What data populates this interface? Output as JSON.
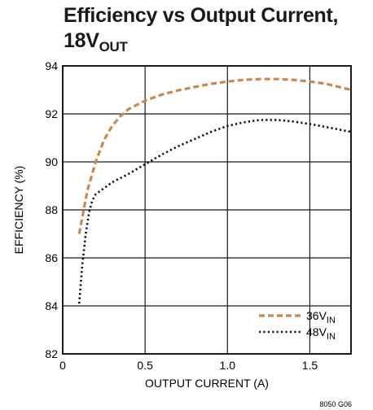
{
  "chart_data": {
    "type": "line",
    "title": {
      "line1": "Efficiency vs Output Current,",
      "line2_main": "18V",
      "line2_sub": "OUT"
    },
    "xlabel": "OUTPUT CURRENT (A)",
    "ylabel": "EFFICIENCY (%)",
    "xlim": [
      0,
      1.75
    ],
    "ylim": [
      82,
      94
    ],
    "xticks": [
      0,
      0.5,
      1.0,
      1.5
    ],
    "xtick_labels": [
      "0",
      "0.5",
      "1.0",
      "1.5"
    ],
    "yticks": [
      82,
      84,
      86,
      88,
      90,
      92,
      94
    ],
    "ytick_labels": [
      "82",
      "84",
      "86",
      "88",
      "90",
      "92",
      "94"
    ],
    "grid": true,
    "legend_position": "bottom-right",
    "series": [
      {
        "name": "36V",
        "name_sub": "IN",
        "style": "dashed",
        "color": "#c8894a",
        "x": [
          0.1,
          0.15,
          0.2,
          0.25,
          0.3,
          0.35,
          0.4,
          0.5,
          0.6,
          0.7,
          0.8,
          0.9,
          1.0,
          1.1,
          1.2,
          1.3,
          1.4,
          1.5,
          1.6,
          1.75
        ],
        "y": [
          87.0,
          88.8,
          90.0,
          90.9,
          91.5,
          91.9,
          92.2,
          92.55,
          92.8,
          92.98,
          93.12,
          93.25,
          93.35,
          93.42,
          93.45,
          93.45,
          93.42,
          93.35,
          93.25,
          93.0
        ]
      },
      {
        "name": "48V",
        "name_sub": "IN",
        "style": "dotted",
        "color": "#111111",
        "x": [
          0.1,
          0.12,
          0.14,
          0.16,
          0.18,
          0.2,
          0.25,
          0.3,
          0.4,
          0.5,
          0.6,
          0.7,
          0.8,
          0.9,
          1.0,
          1.1,
          1.2,
          1.3,
          1.4,
          1.5,
          1.6,
          1.75
        ],
        "y": [
          84.1,
          85.8,
          87.0,
          87.9,
          88.4,
          88.65,
          88.9,
          89.15,
          89.5,
          89.9,
          90.3,
          90.65,
          90.95,
          91.25,
          91.5,
          91.65,
          91.75,
          91.75,
          91.68,
          91.58,
          91.45,
          91.25
        ]
      }
    ],
    "figure_note": "8050 G06"
  }
}
